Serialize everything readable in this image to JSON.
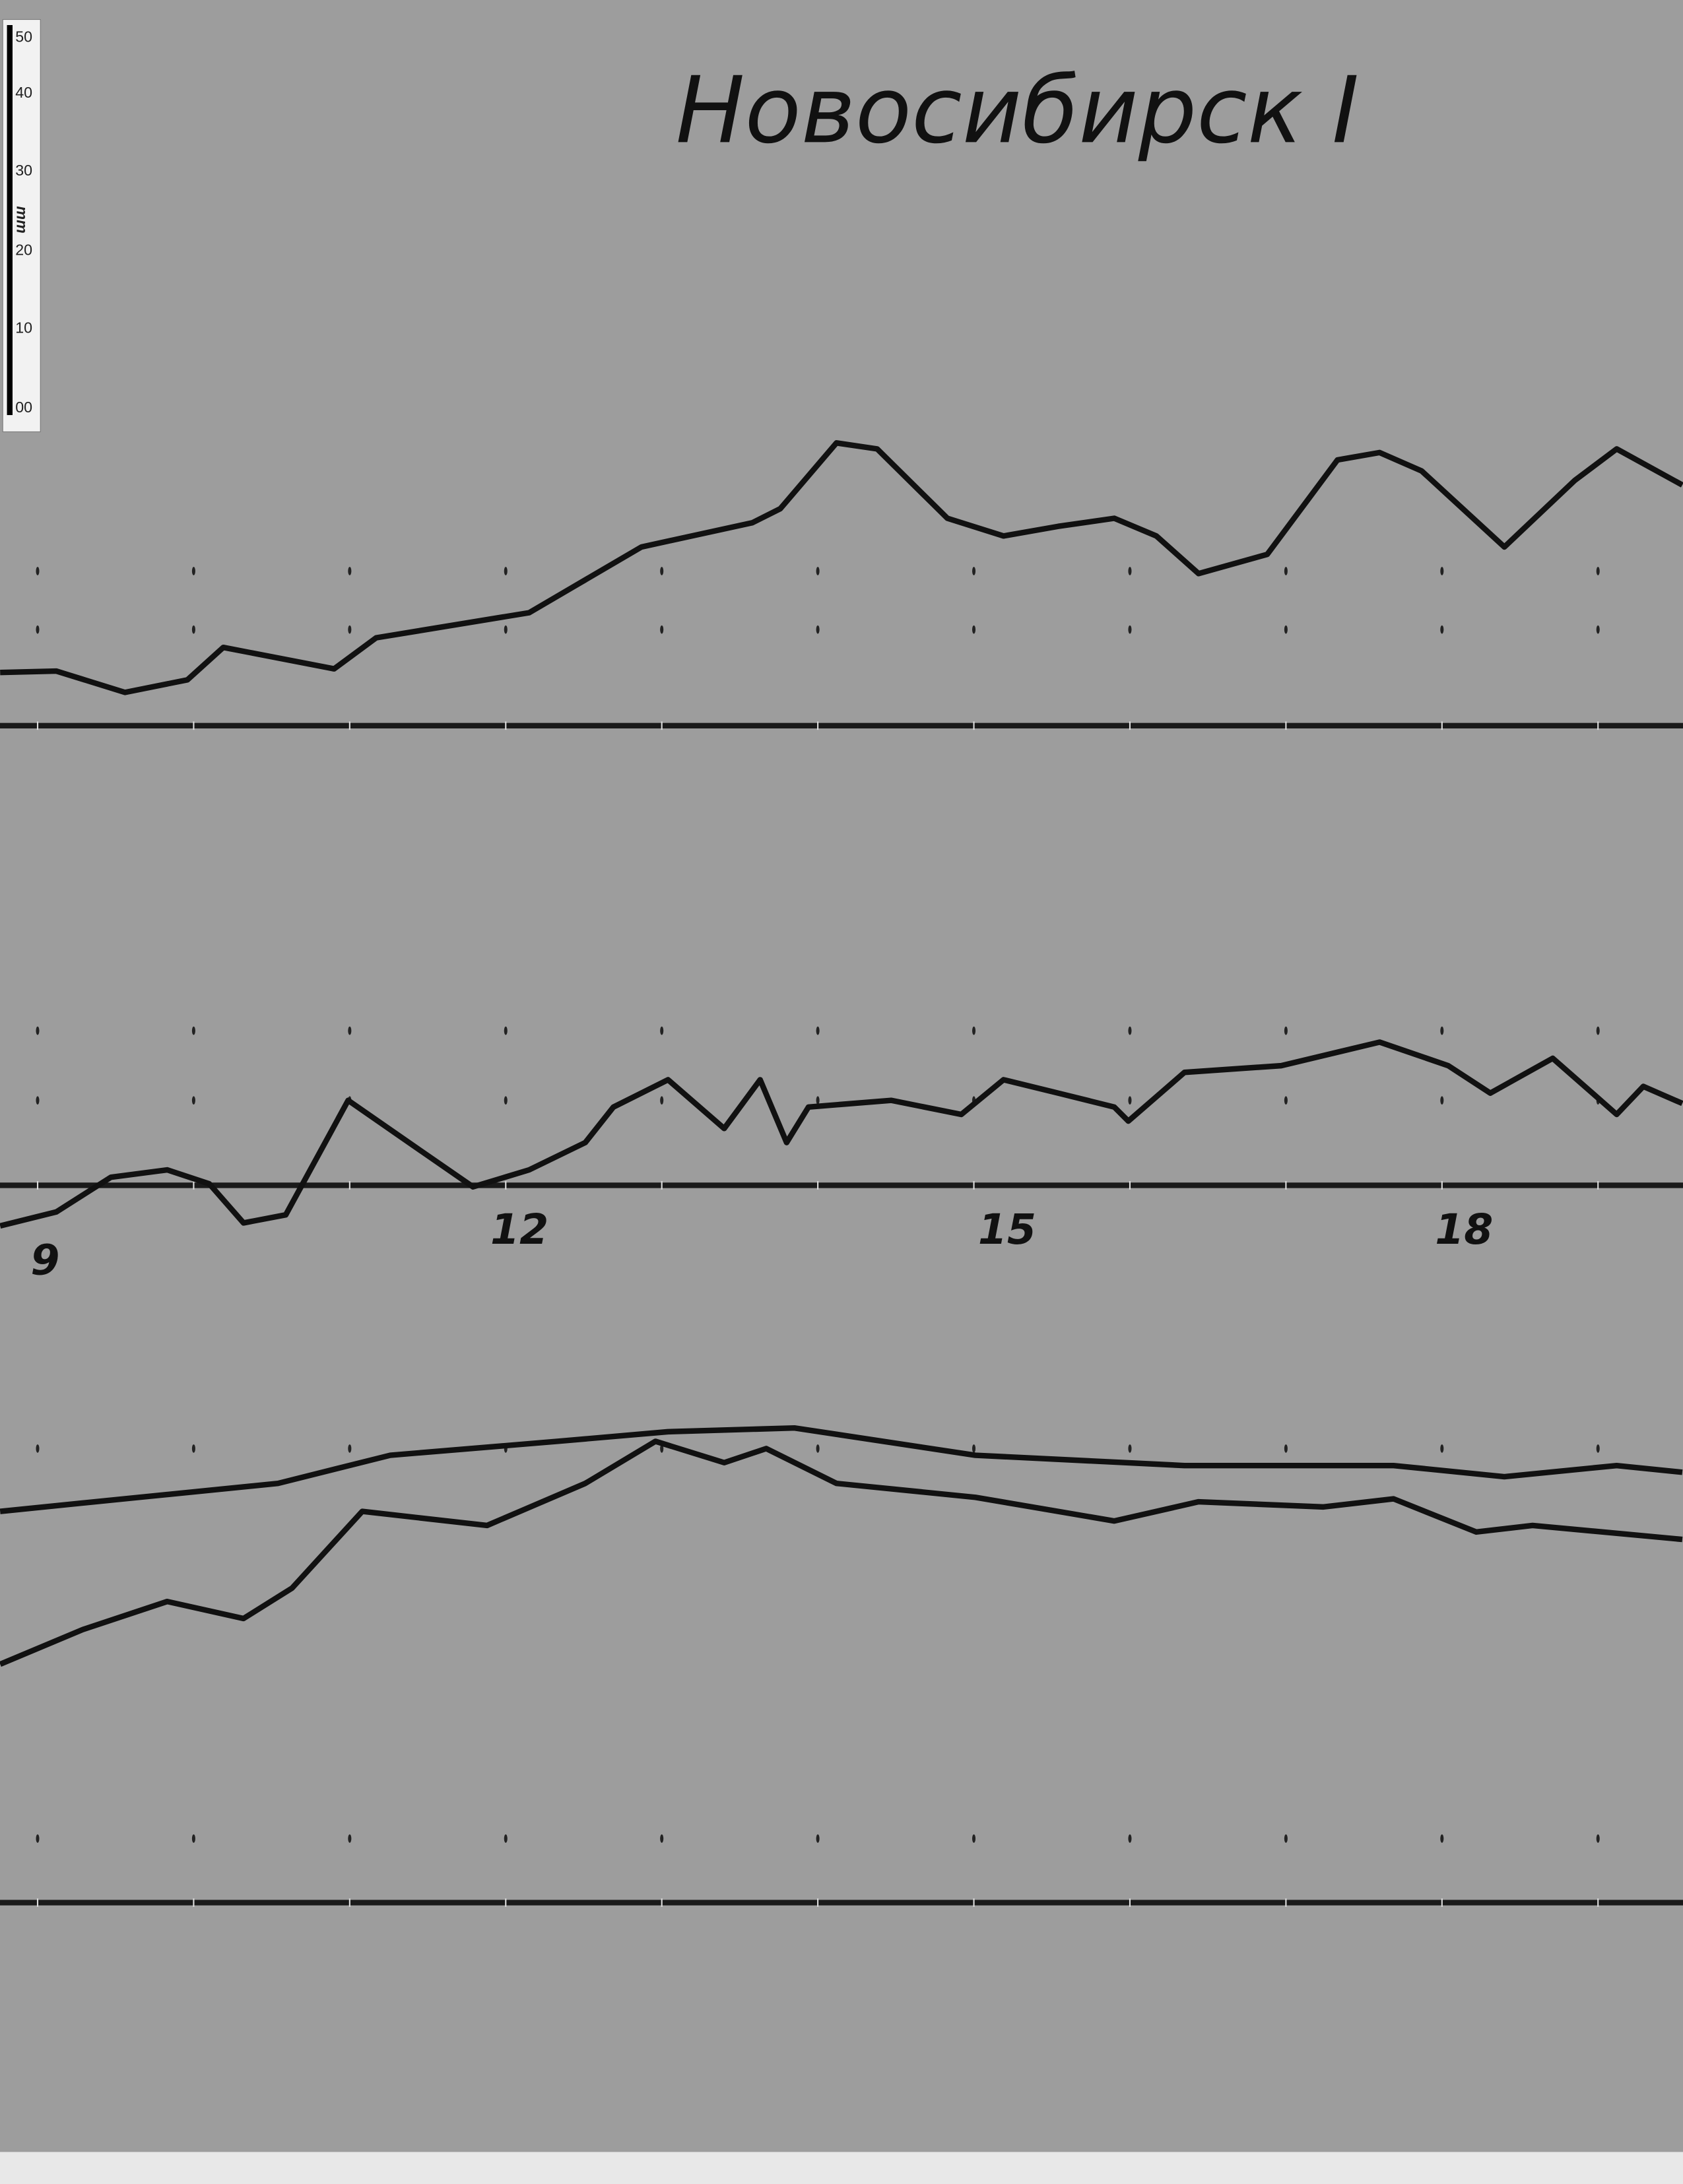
{
  "title": "Новосибирск I",
  "ruler": {
    "unit": "mm",
    "ticks": [
      "00",
      "10",
      "20",
      "30",
      "40",
      "50"
    ]
  },
  "chart_data": {
    "type": "line",
    "title": "Новосибирск I",
    "xlabel": "",
    "ylabel": "",
    "x_unit": "hour",
    "y_unit": "mm",
    "x_tick_labels": [
      "9",
      "12",
      "15",
      "18"
    ],
    "hour_marks": [
      9,
      10,
      11,
      12,
      13,
      14,
      15,
      16,
      17,
      18,
      19
    ],
    "xlim": [
      8.76,
      19.54
    ],
    "grid": false,
    "background": "#9d9d9d",
    "trace_color": "#111111",
    "panels": [
      {
        "series": [
          {
            "points": [
              [
                8.76,
                7.2
              ],
              [
                9.12,
                7.4
              ],
              [
                9.56,
                4.5
              ],
              [
                9.96,
                6.2
              ],
              [
                10.19,
                10.6
              ],
              [
                10.9,
                7.7
              ],
              [
                11.17,
                11.9
              ],
              [
                12.15,
                15.3
              ],
              [
                12.87,
                24.2
              ],
              [
                13.58,
                27.5
              ],
              [
                13.76,
                29.4
              ],
              [
                14.12,
                38.3
              ],
              [
                14.38,
                37.5
              ],
              [
                14.83,
                28.1
              ],
              [
                15.19,
                25.7
              ],
              [
                15.54,
                27
              ],
              [
                15.9,
                28.1
              ],
              [
                16.17,
                25.7
              ],
              [
                16.44,
                20.6
              ],
              [
                16.88,
                23.2
              ],
              [
                17.33,
                36
              ],
              [
                17.6,
                37
              ],
              [
                17.87,
                34.5
              ],
              [
                18.4,
                24.2
              ],
              [
                18.85,
                33.2
              ],
              [
                19.12,
                37.5
              ],
              [
                19.54,
                32.6
              ]
            ]
          }
        ]
      },
      {
        "series": [
          {
            "points": [
              [
                8.76,
                -5.5
              ],
              [
                9.12,
                -3.6
              ],
              [
                9.47,
                1.1
              ],
              [
                9.83,
                2.1
              ],
              [
                10.1,
                0.2
              ],
              [
                10.32,
                -5.1
              ],
              [
                10.59,
                -4
              ],
              [
                10.99,
                11.5
              ],
              [
                11.44,
                4.9
              ],
              [
                11.79,
                -0.2
              ],
              [
                12.15,
                2.1
              ],
              [
                12.51,
                5.8
              ],
              [
                12.69,
                10.6
              ],
              [
                13.04,
                14.3
              ],
              [
                13.4,
                7.7
              ],
              [
                13.63,
                14.3
              ],
              [
                13.8,
                5.8
              ],
              [
                13.94,
                10.6
              ],
              [
                14.47,
                11.5
              ],
              [
                14.92,
                9.6
              ],
              [
                15.19,
                14.3
              ],
              [
                15.54,
                12.5
              ],
              [
                15.9,
                10.6
              ],
              [
                15.99,
                8.7
              ],
              [
                16.35,
                15.3
              ],
              [
                16.97,
                16.2
              ],
              [
                17.6,
                19.4
              ],
              [
                18.04,
                16.2
              ],
              [
                18.31,
                12.5
              ],
              [
                18.71,
                17.2
              ],
              [
                19.12,
                9.6
              ],
              [
                19.29,
                13.4
              ],
              [
                19.54,
                11.1
              ]
            ]
          }
        ]
      },
      {
        "series": [
          {
            "points": [
              [
                8.76,
                53
              ],
              [
                9.65,
                54.9
              ],
              [
                10.54,
                56.8
              ],
              [
                11.26,
                60.6
              ],
              [
                12.33,
                62.5
              ],
              [
                13.04,
                63.8
              ],
              [
                13.85,
                64.3
              ],
              [
                15.01,
                60.6
              ],
              [
                16.35,
                59.2
              ],
              [
                17.69,
                59.2
              ],
              [
                18.4,
                57.7
              ],
              [
                19.12,
                59.2
              ],
              [
                19.54,
                58.3
              ]
            ]
          },
          {
            "points": [
              [
                8.76,
                32.3
              ],
              [
                9.29,
                37
              ],
              [
                9.83,
                40.8
              ],
              [
                10.32,
                38.5
              ],
              [
                10.63,
                42.6
              ],
              [
                11.08,
                53
              ],
              [
                11.88,
                51.1
              ],
              [
                12.51,
                56.8
              ],
              [
                12.96,
                62.5
              ],
              [
                13.4,
                59.6
              ],
              [
                13.67,
                61.5
              ],
              [
                14.12,
                56.8
              ],
              [
                15.01,
                54.9
              ],
              [
                15.9,
                51.7
              ],
              [
                16.44,
                54.3
              ],
              [
                17.24,
                53.6
              ],
              [
                17.69,
                54.7
              ],
              [
                18.22,
                50.2
              ],
              [
                18.58,
                51.1
              ],
              [
                19.54,
                49.2
              ]
            ]
          }
        ]
      }
    ]
  }
}
